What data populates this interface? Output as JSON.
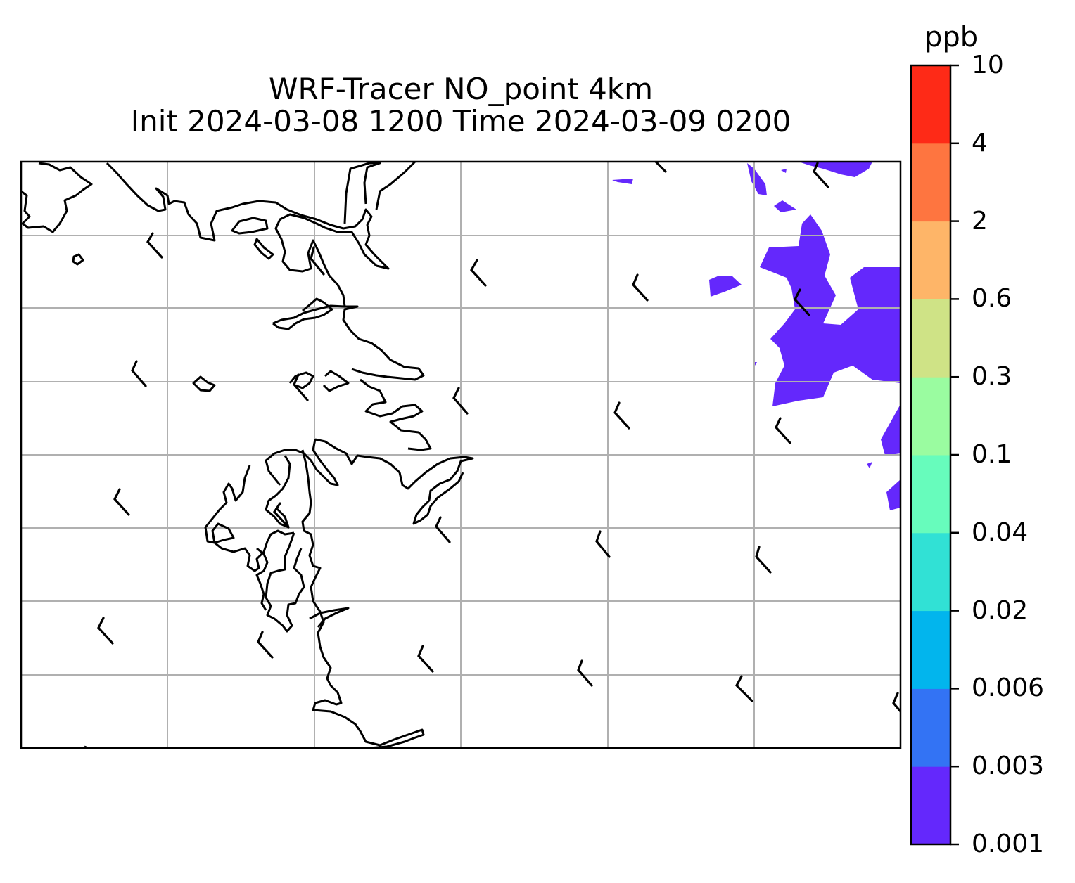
{
  "title": {
    "line1": "WRF-Tracer NO_point 4km",
    "line2": "Init 2024-03-08 1200 Time 2024-03-09 0200"
  },
  "colorbar": {
    "unit": "ppb",
    "levels": [
      "0.001",
      "0.003",
      "0.006",
      "0.02",
      "0.04",
      "0.1",
      "0.3",
      "0.6",
      "2",
      "4",
      "10"
    ],
    "colors": [
      "#6428fc",
      "#3373f4",
      "#02b5ed",
      "#31e1d5",
      "#67fcbc",
      "#9afca0",
      "#cfe386",
      "#feb568",
      "#fe7540",
      "#fe2a17"
    ]
  },
  "map": {
    "gridlines": "on",
    "tracer_area_color": "#6428fc",
    "wind_barbs": "black"
  }
}
